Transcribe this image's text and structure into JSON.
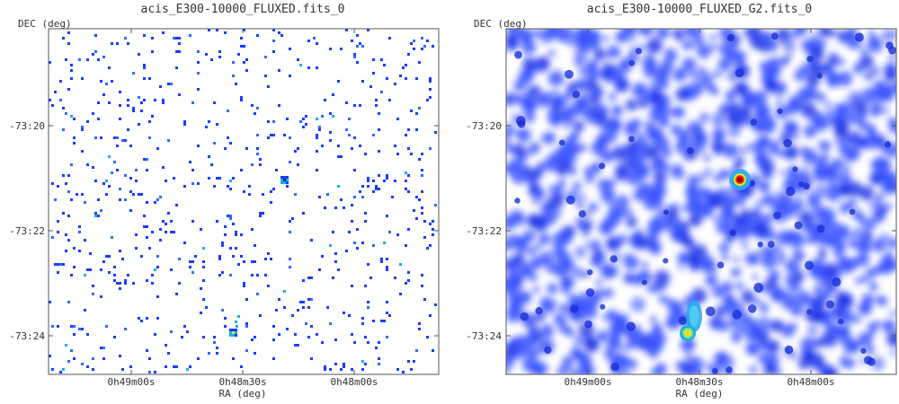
{
  "chart_data": [
    {
      "type": "heatmap",
      "title": "acis_E300-10000_FLUXED.fits_0",
      "xlabel": "RA (deg)",
      "ylabel": "DEC (deg)",
      "x_ticks": [
        "0h49m00s",
        "0h48m30s",
        "0h48m00s"
      ],
      "y_ticks": [
        "-73:20",
        "-73:22",
        "-73:24"
      ],
      "style": "sparse-pixels",
      "colormap": [
        "#ffffff",
        "#1a3cff",
        "#17b3e6",
        "#f0e020",
        "#ff2a00",
        "#8b0000"
      ],
      "sources": [
        {
          "ra": "0h48m26s",
          "dec": "-73:21:00",
          "peak": "high"
        },
        {
          "ra": "0h48m32s",
          "dec": "-73:23:55",
          "peak": "medium"
        }
      ]
    },
    {
      "type": "heatmap",
      "title": "acis_E300-10000_FLUXED_G2.fits_0",
      "xlabel": "RA (deg)",
      "ylabel": "DEC (deg)",
      "x_ticks": [
        "0h49m00s",
        "0h48m30s",
        "0h48m00s"
      ],
      "y_ticks": [
        "-73:20",
        "-73:22",
        "-73:24"
      ],
      "style": "smoothed",
      "colormap": [
        "#ffffff",
        "#1a3cff",
        "#17b3e6",
        "#f0e020",
        "#ff2a00",
        "#8b0000"
      ],
      "sources": [
        {
          "ra": "0h48m26s",
          "dec": "-73:21:00",
          "peak": "high"
        },
        {
          "ra": "0h48m32s",
          "dec": "-73:23:55",
          "peak": "medium"
        }
      ]
    }
  ]
}
